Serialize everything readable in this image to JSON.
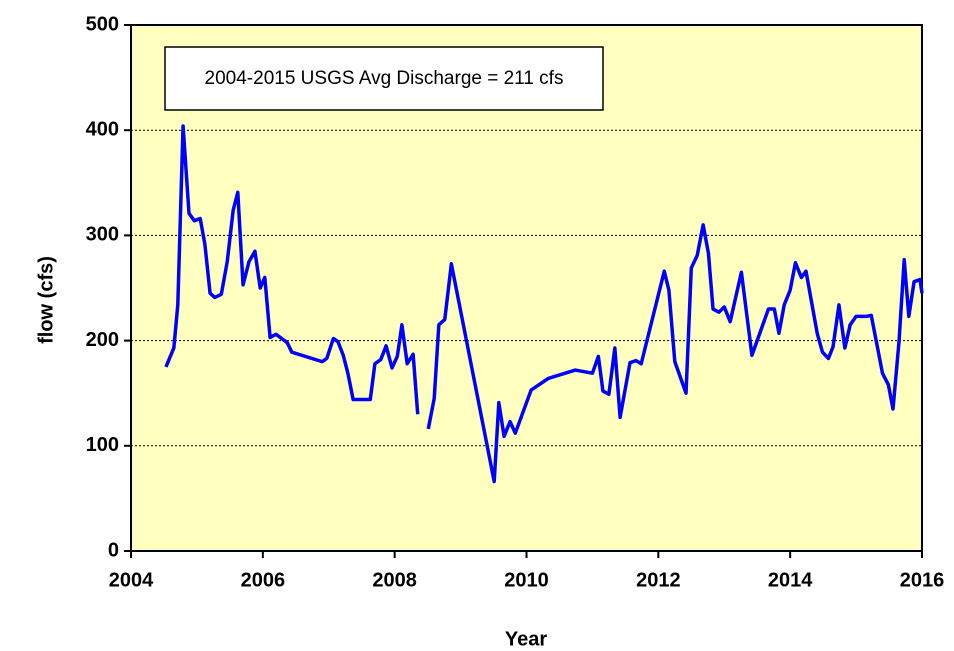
{
  "chart_data": {
    "type": "line",
    "annotation": "2004-2015 USGS  Avg Discharge = 211 cfs",
    "xlabel": "Year",
    "ylabel": "flow  (cfs)",
    "xlim": [
      2004,
      2016
    ],
    "xticks": [
      2004,
      2006,
      2008,
      2010,
      2012,
      2014,
      2016
    ],
    "ylim": [
      0,
      500
    ],
    "yticks": [
      0,
      100,
      200,
      300,
      400,
      500
    ],
    "grid": true,
    "background": "#ffffc0",
    "series": [
      {
        "name": "flow",
        "color": "#0000ff",
        "x": [
          2004.53,
          2004.65,
          2004.71,
          2004.79,
          2004.88,
          2004.96,
          2005.05,
          2005.12,
          2005.2,
          2005.27,
          2005.37,
          2005.46,
          2005.55,
          2005.62,
          2005.7,
          2005.79,
          2005.88,
          2005.96,
          2006.03,
          2006.11,
          2006.2,
          2006.37,
          2006.44,
          2006.9,
          2006.97,
          2007.07,
          2007.14,
          2007.22,
          2007.29,
          2007.37,
          2007.63,
          2007.7,
          2007.79,
          2007.87,
          2007.96,
          2008.04,
          2008.11,
          2008.19,
          2008.28,
          2008.35,
          null,
          2008.51,
          2008.6,
          2008.67,
          2008.76,
          2008.86,
          2009.51,
          2009.58,
          2009.66,
          2009.75,
          2009.83,
          2010.07,
          2010.33,
          2010.74,
          2011.0,
          2011.09,
          2011.16,
          2011.25,
          2011.34,
          2011.42,
          2011.57,
          2011.66,
          2011.74,
          2012.09,
          2012.16,
          2012.25,
          2012.42,
          2012.5,
          2012.59,
          2012.68,
          2012.76,
          2012.83,
          2012.92,
          2013.0,
          2013.09,
          2013.26,
          2013.42,
          2013.67,
          2013.76,
          2013.83,
          2013.91,
          2014.0,
          2014.08,
          2014.17,
          2014.24,
          2014.41,
          2014.49,
          2014.58,
          2014.65,
          2014.74,
          2014.83,
          2014.91,
          2015.0,
          2015.15,
          2015.23,
          2015.32,
          2015.4,
          2015.49,
          2015.56,
          2015.65,
          2015.73,
          2015.8,
          2015.88,
          2015.97,
          2016.0
        ],
        "values": [
          175,
          193,
          234,
          404,
          321,
          314,
          316,
          292,
          245,
          241,
          244,
          275,
          324,
          341,
          253,
          275,
          285,
          250,
          260,
          203,
          206,
          198,
          189,
          180,
          183,
          202,
          199,
          186,
          169,
          144,
          144,
          178,
          182,
          195,
          174,
          185,
          215,
          178,
          187,
          130,
          null,
          116,
          145,
          215,
          220,
          273,
          66,
          141,
          109,
          123,
          112,
          153,
          164,
          172,
          169,
          185,
          152,
          149,
          193,
          127,
          179,
          181,
          178,
          266,
          248,
          180,
          150,
          269,
          281,
          310,
          283,
          230,
          227,
          232,
          218,
          265,
          186,
          230,
          230,
          207,
          234,
          248,
          274,
          260,
          266,
          207,
          189,
          183,
          194,
          234,
          193,
          215,
          223,
          223,
          224,
          195,
          169,
          158,
          135,
          198,
          277,
          223,
          256,
          258,
          245
        ]
      }
    ]
  }
}
